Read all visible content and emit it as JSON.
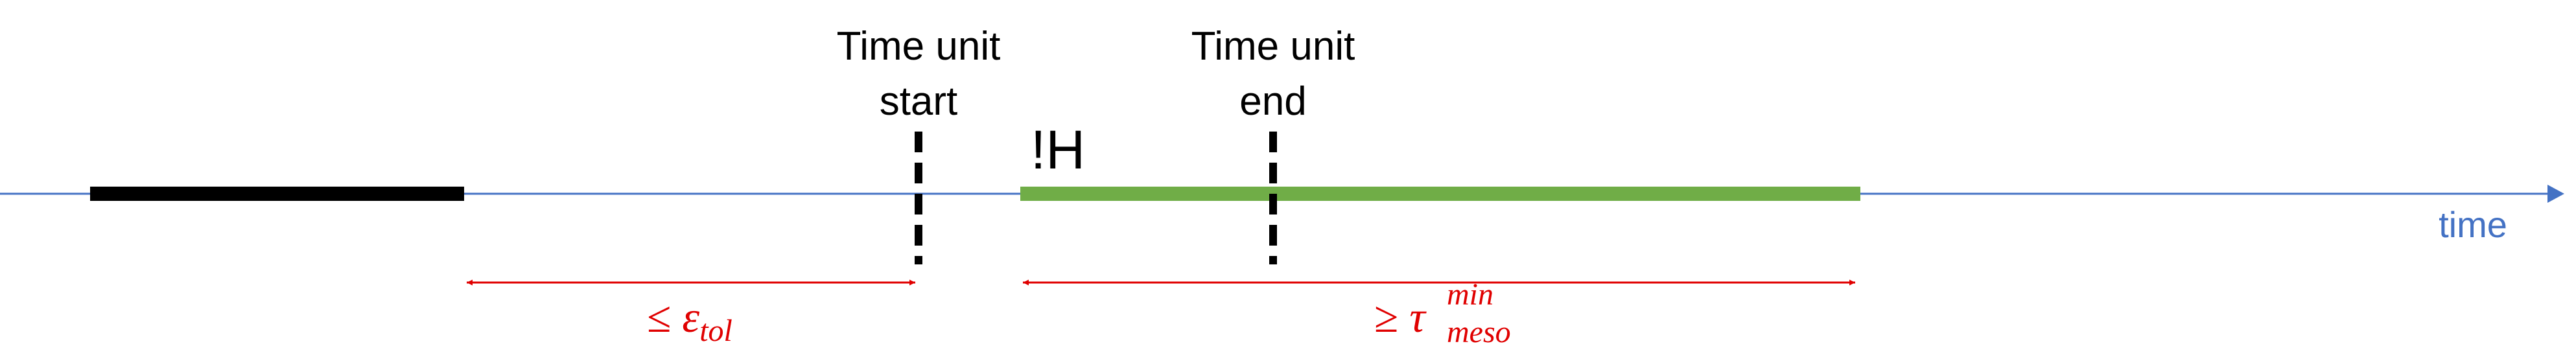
{
  "start_marker": {
    "line1": "Time unit",
    "line2": "start"
  },
  "end_marker": {
    "line1": "Time unit",
    "line2": "end"
  },
  "state_label": "!H",
  "axis_label": "time",
  "tolerance_label": {
    "relation": "≤",
    "symbol": "ε",
    "subscript": "tol"
  },
  "duration_label": {
    "relation": "≥",
    "symbol": "τ",
    "superscript": "min",
    "subscript": "meso"
  }
}
